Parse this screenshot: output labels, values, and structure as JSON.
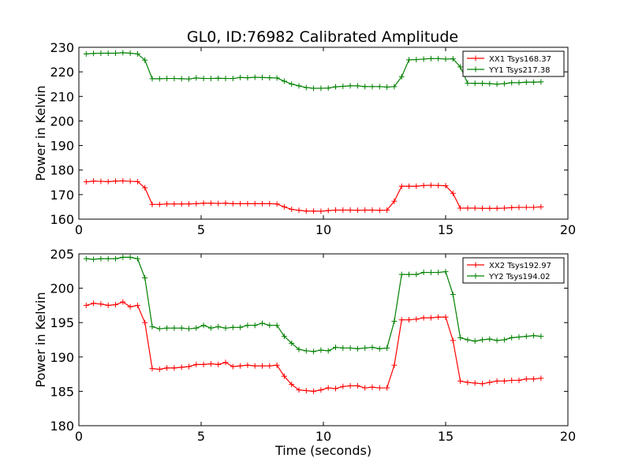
{
  "figure_title": "GL0, ID:76982 Calibrated Amplitude",
  "chart_data": [
    {
      "type": "line",
      "title": "GL0, ID:76982 Calibrated Amplitude",
      "xlabel": "",
      "ylabel": "Power in Kelvin",
      "xlim": [
        0,
        20
      ],
      "ylim": [
        160,
        230
      ],
      "xticks": [
        "0",
        "5",
        "10",
        "15",
        "20"
      ],
      "yticks": [
        "160",
        "170",
        "180",
        "190",
        "200",
        "210",
        "220",
        "230"
      ],
      "legend_position": "top-right",
      "x": [
        0.3,
        0.6,
        0.9,
        1.2,
        1.5,
        1.8,
        2.1,
        2.4,
        2.7,
        3.0,
        3.3,
        3.6,
        3.9,
        4.2,
        4.5,
        4.8,
        5.1,
        5.4,
        5.7,
        6.0,
        6.3,
        6.6,
        6.9,
        7.2,
        7.5,
        7.8,
        8.1,
        8.4,
        8.7,
        9.0,
        9.3,
        9.6,
        9.9,
        10.2,
        10.5,
        10.8,
        11.1,
        11.4,
        11.7,
        12.0,
        12.3,
        12.6,
        12.9,
        13.2,
        13.5,
        13.8,
        14.1,
        14.4,
        14.7,
        15.0,
        15.3,
        15.6,
        15.9,
        16.2,
        16.5,
        16.8,
        17.1,
        17.4,
        17.7,
        18.0,
        18.3,
        18.6,
        18.9
      ],
      "series": [
        {
          "name": "XX1 Tsys168.37",
          "color": "#ff0000",
          "values": [
            175.2,
            175.5,
            175.4,
            175.3,
            175.5,
            175.6,
            175.4,
            175.3,
            172.8,
            166.0,
            166.0,
            166.2,
            166.2,
            166.2,
            166.2,
            166.3,
            166.5,
            166.5,
            166.4,
            166.5,
            166.3,
            166.3,
            166.3,
            166.3,
            166.3,
            166.3,
            166.2,
            165.0,
            164.0,
            163.6,
            163.3,
            163.3,
            163.2,
            163.5,
            163.7,
            163.7,
            163.7,
            163.6,
            163.7,
            163.7,
            163.6,
            163.7,
            167.3,
            173.4,
            173.4,
            173.4,
            173.7,
            173.8,
            173.7,
            173.6,
            170.5,
            164.5,
            164.5,
            164.5,
            164.4,
            164.4,
            164.4,
            164.5,
            164.7,
            164.8,
            164.8,
            164.8,
            165.0
          ]
        },
        {
          "name": "YY1 Tsys217.38",
          "color": "#008000",
          "values": [
            227.3,
            227.5,
            227.6,
            227.6,
            227.6,
            227.8,
            227.6,
            227.3,
            224.8,
            217.2,
            217.2,
            217.3,
            217.3,
            217.2,
            217.1,
            217.5,
            217.3,
            217.3,
            217.4,
            217.3,
            217.3,
            217.7,
            217.6,
            217.8,
            217.7,
            217.6,
            217.5,
            216.2,
            215.0,
            214.3,
            213.6,
            213.3,
            213.3,
            213.4,
            213.9,
            214.1,
            214.3,
            214.3,
            214.0,
            214.0,
            214.0,
            213.8,
            214.0,
            218.0,
            224.9,
            225.0,
            225.2,
            225.4,
            225.4,
            225.2,
            225.3,
            222.0,
            215.4,
            215.3,
            215.3,
            215.2,
            215.0,
            215.2,
            215.6,
            215.6,
            215.8,
            215.8,
            215.9
          ]
        }
      ]
    },
    {
      "type": "line",
      "title": "",
      "xlabel": "Time (seconds)",
      "ylabel": "Power in Kelvin",
      "xlim": [
        0,
        20
      ],
      "ylim": [
        180,
        205
      ],
      "xticks": [
        "0",
        "5",
        "10",
        "15",
        "20"
      ],
      "yticks": [
        "180",
        "185",
        "190",
        "195",
        "200",
        "205"
      ],
      "legend_position": "top-right",
      "x": [
        0.3,
        0.6,
        0.9,
        1.2,
        1.5,
        1.8,
        2.1,
        2.4,
        2.7,
        3.0,
        3.3,
        3.6,
        3.9,
        4.2,
        4.5,
        4.8,
        5.1,
        5.4,
        5.7,
        6.0,
        6.3,
        6.6,
        6.9,
        7.2,
        7.5,
        7.8,
        8.1,
        8.4,
        8.7,
        9.0,
        9.3,
        9.6,
        9.9,
        10.2,
        10.5,
        10.8,
        11.1,
        11.4,
        11.7,
        12.0,
        12.3,
        12.6,
        12.9,
        13.2,
        13.5,
        13.8,
        14.1,
        14.4,
        14.7,
        15.0,
        15.3,
        15.6,
        15.9,
        16.2,
        16.5,
        16.8,
        17.1,
        17.4,
        17.7,
        18.0,
        18.3,
        18.6,
        18.9
      ],
      "series": [
        {
          "name": "XX2 Tsys192.97",
          "color": "#ff0000",
          "values": [
            197.5,
            197.8,
            197.7,
            197.5,
            197.6,
            198.0,
            197.3,
            197.5,
            195.0,
            188.3,
            188.2,
            188.4,
            188.4,
            188.5,
            188.6,
            188.9,
            188.9,
            189.0,
            188.9,
            189.2,
            188.6,
            188.7,
            188.8,
            188.7,
            188.7,
            188.7,
            188.8,
            187.2,
            186.0,
            185.2,
            185.1,
            185.0,
            185.2,
            185.5,
            185.4,
            185.7,
            185.8,
            185.8,
            185.5,
            185.6,
            185.5,
            185.5,
            188.8,
            195.4,
            195.4,
            195.5,
            195.7,
            195.7,
            195.8,
            195.8,
            192.4,
            186.5,
            186.3,
            186.2,
            186.1,
            186.3,
            186.5,
            186.5,
            186.6,
            186.6,
            186.8,
            186.8,
            186.9
          ]
        },
        {
          "name": "YY2 Tsys194.02",
          "color": "#008000",
          "values": [
            204.3,
            204.2,
            204.3,
            204.3,
            204.3,
            204.5,
            204.5,
            204.3,
            201.5,
            194.4,
            194.1,
            194.2,
            194.2,
            194.2,
            194.1,
            194.2,
            194.6,
            194.2,
            194.4,
            194.2,
            194.3,
            194.3,
            194.6,
            194.6,
            194.9,
            194.6,
            194.6,
            193.0,
            192.0,
            191.1,
            190.9,
            190.8,
            191.0,
            190.9,
            191.4,
            191.3,
            191.3,
            191.2,
            191.3,
            191.4,
            191.2,
            191.3,
            195.2,
            202.0,
            202.0,
            202.0,
            202.3,
            202.3,
            202.3,
            202.4,
            199.1,
            192.8,
            192.5,
            192.3,
            192.5,
            192.6,
            192.4,
            192.5,
            192.8,
            192.9,
            193.0,
            193.1,
            193.0
          ]
        }
      ]
    }
  ]
}
